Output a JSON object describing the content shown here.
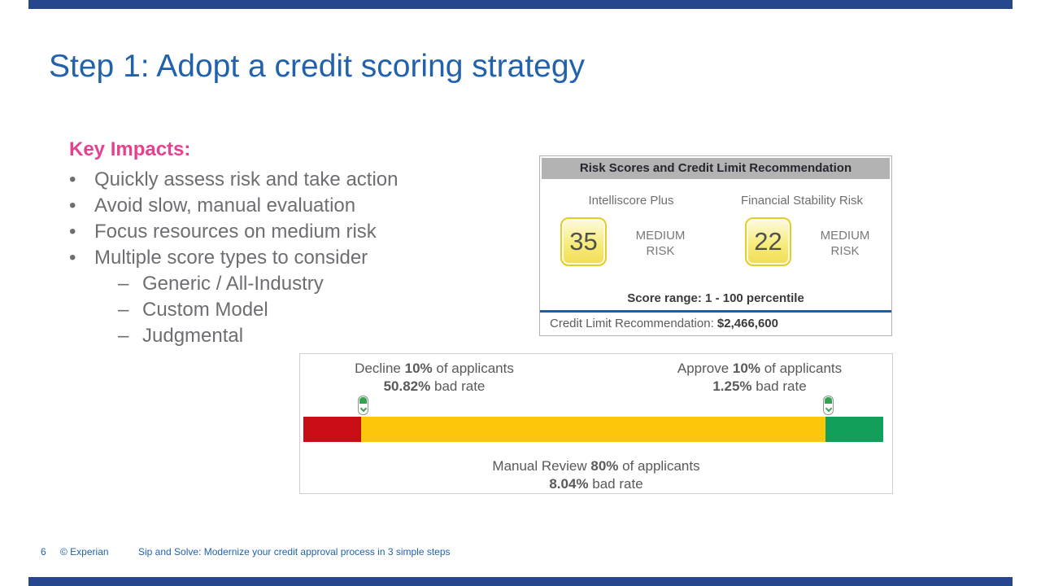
{
  "colors": {
    "accent_bar": "#26478d",
    "title_blue": "#2262ac",
    "heading_pink": "#e6408e",
    "body_gray": "#6d6e71",
    "panel_header_gray": "#b3b3b3",
    "divider_blue": "#1f5fa8",
    "badge_yellow_border": "#e3cd2a",
    "decline_red": "#c90d14",
    "review_yellow": "#fcc60b",
    "approve_green": "#139e59"
  },
  "slide": {
    "title": "Step 1: Adopt a credit scoring strategy"
  },
  "key_impacts": {
    "heading": "Key Impacts:",
    "bullet_char": "•",
    "dash_char": "–",
    "items": [
      {
        "text": "Quickly assess risk and take action"
      },
      {
        "text": "Avoid slow, manual evaluation"
      },
      {
        "text": "Focus resources on medium risk"
      },
      {
        "text": "Multiple score types to consider"
      }
    ],
    "sub_items": [
      {
        "text": "Generic / All-Industry"
      },
      {
        "text": "Custom Model"
      },
      {
        "text": "Judgmental"
      }
    ]
  },
  "risk_panel": {
    "header": "Risk Scores and Credit Limit Recommendation",
    "scores": [
      {
        "label": "Intelliscore Plus",
        "value": "35",
        "risk": "MEDIUM RISK"
      },
      {
        "label": "Financial Stability Risk",
        "value": "22",
        "risk": "MEDIUM RISK"
      }
    ],
    "score_range": "Score range: 1 - 100 percentile",
    "credit_limit_label": "Credit Limit Recommendation:",
    "credit_limit_value": "$2,466,600"
  },
  "strategy": {
    "decline": {
      "pre": "Decline",
      "pct": "10%",
      "post": "of applicants",
      "rate": "50.82%",
      "rate_post": "bad rate"
    },
    "approve": {
      "pre": "Approve",
      "pct": "10%",
      "post": "of applicants",
      "rate": "1.25%",
      "rate_post": "bad rate"
    },
    "review": {
      "pre": "Manual Review",
      "pct": "80%",
      "post": "of applicants",
      "rate": "8.04%",
      "rate_post": "bad rate"
    }
  },
  "chart_data": {
    "type": "bar",
    "orientation": "horizontal",
    "categories": [
      "Decline",
      "Manual Review",
      "Approve"
    ],
    "series": [
      {
        "name": "Share of applicants (%)",
        "values": [
          10,
          80,
          10
        ]
      },
      {
        "name": "Bad rate (%)",
        "values": [
          50.82,
          8.04,
          1.25
        ]
      }
    ],
    "segment_colors": [
      "#c90d14",
      "#fcc60b",
      "#139e59"
    ],
    "legend": "none"
  },
  "footer": {
    "page_number": "6",
    "copyright": "© Experian",
    "tagline": "Sip and Solve: Modernize your credit approval process in 3 simple steps"
  }
}
